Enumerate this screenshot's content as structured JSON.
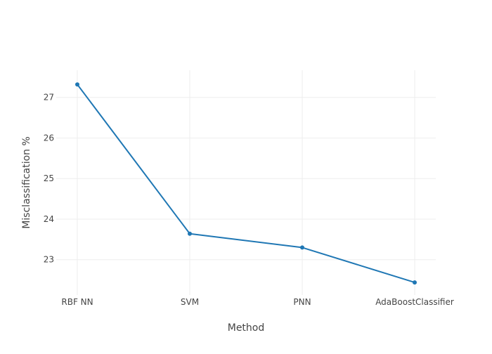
{
  "chart_data": {
    "type": "line",
    "title": "",
    "xlabel": "Method",
    "ylabel": "Misclassification %",
    "categories": [
      "RBF NN",
      "SVM",
      "PNN",
      "AdaBoostClassifier"
    ],
    "series": [
      {
        "values": [
          27.32,
          23.64,
          23.3,
          22.44
        ],
        "color": "#1f77b4"
      }
    ],
    "ylim": [
      22.13,
      27.67
    ],
    "yticks": [
      23,
      24,
      25,
      26,
      27
    ],
    "grid": true,
    "markers": true
  }
}
